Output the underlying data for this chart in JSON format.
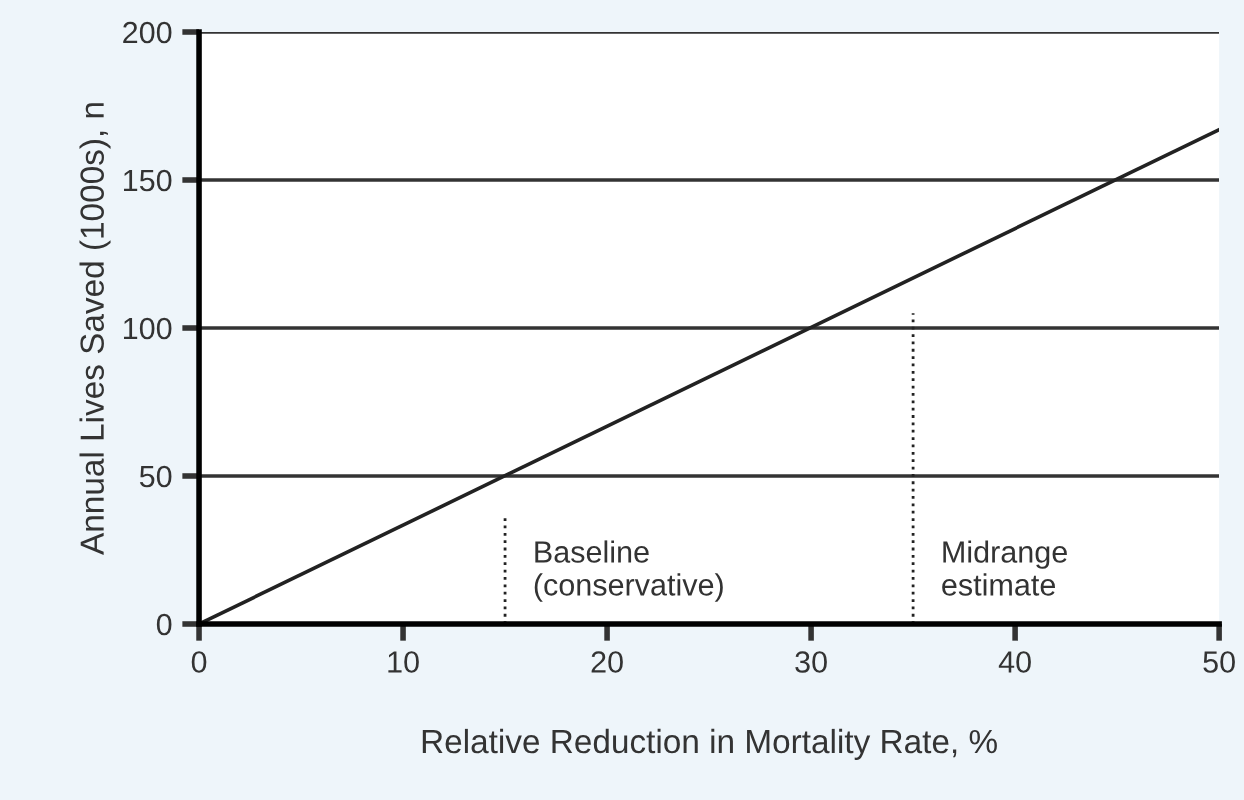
{
  "chart_data": {
    "type": "line",
    "xlabel": "Relative Reduction in Mortality Rate, %",
    "ylabel": "Annual Lives Saved (1000s), n",
    "series": [
      {
        "x": [
          0,
          50
        ],
        "values": [
          0,
          167
        ],
        "color": "#222222",
        "line_style": "solid"
      },
      {
        "x": [
          15,
          15
        ],
        "values": [
          0,
          36
        ],
        "color": "#222222",
        "line_style": "dotted",
        "name": "Baseline\n(conservative)"
      },
      {
        "x": [
          35,
          35
        ],
        "values": [
          0,
          105
        ],
        "color": "#222222",
        "line_style": "dotted",
        "name": "Midrange\nestimate"
      }
    ],
    "xlim": [
      0,
      50
    ],
    "xticks": [
      0,
      10,
      20,
      30,
      40,
      50
    ],
    "ylim": [
      0,
      200
    ],
    "yticks": [
      0,
      50,
      100,
      150,
      200
    ],
    "grid": "y",
    "legend": false,
    "marker": "none"
  }
}
